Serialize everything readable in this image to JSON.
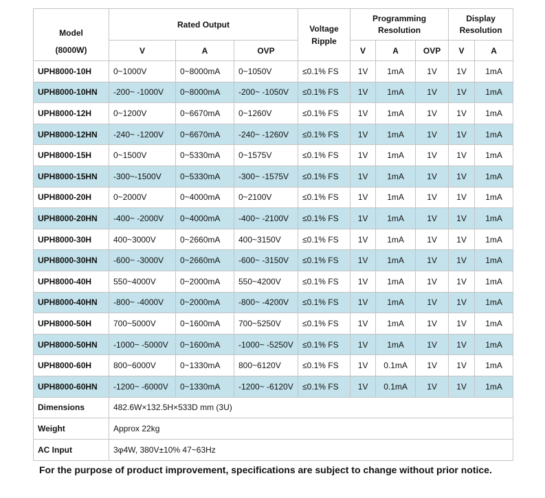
{
  "header": {
    "model": "Model",
    "model_unit": "(8000W)",
    "rated_output": "Rated Output",
    "voltage_ripple": "Voltage Ripple",
    "programming_resolution": "Programming Resolution",
    "display_resolution": "Display Resolution",
    "rated_columns": [
      "V",
      "A",
      "OVP"
    ],
    "programming_columns": [
      "V",
      "A",
      "OVP"
    ],
    "display_columns": [
      "V",
      "A"
    ]
  },
  "table": {
    "rows": [
      [
        "UPH8000-10H",
        "0~1000V",
        "0~8000mA",
        "0~1050V",
        "≤0.1% FS",
        "1V",
        "1mA",
        "1V",
        "1V",
        "1mA"
      ],
      [
        "UPH8000-10HN",
        "-200~ -1000V",
        "0~8000mA",
        "-200~ -1050V",
        "≤0.1% FS",
        "1V",
        "1mA",
        "1V",
        "1V",
        "1mA"
      ],
      [
        "UPH8000-12H",
        "0~1200V",
        "0~6670mA",
        "0~1260V",
        "≤0.1% FS",
        "1V",
        "1mA",
        "1V",
        "1V",
        "1mA"
      ],
      [
        "UPH8000-12HN",
        "-240~ -1200V",
        "0~6670mA",
        "-240~ -1260V",
        "≤0.1% FS",
        "1V",
        "1mA",
        "1V",
        "1V",
        "1mA"
      ],
      [
        "UPH8000-15H",
        "0~1500V",
        "0~5330mA",
        "0~1575V",
        "≤0.1% FS",
        "1V",
        "1mA",
        "1V",
        "1V",
        "1mA"
      ],
      [
        "UPH8000-15HN",
        "-300~-1500V",
        "0~5330mA",
        "-300~ -1575V",
        "≤0.1% FS",
        "1V",
        "1mA",
        "1V",
        "1V",
        "1mA"
      ],
      [
        "UPH8000-20H",
        "0~2000V",
        "0~4000mA",
        "0~2100V",
        "≤0.1% FS",
        "1V",
        "1mA",
        "1V",
        "1V",
        "1mA"
      ],
      [
        "UPH8000-20HN",
        "-400~ -2000V",
        "0~4000mA",
        "-400~ -2100V",
        "≤0.1% FS",
        "1V",
        "1mA",
        "1V",
        "1V",
        "1mA"
      ],
      [
        "UPH8000-30H",
        "400~3000V",
        "0~2660mA",
        "400~3150V",
        "≤0.1% FS",
        "1V",
        "1mA",
        "1V",
        "1V",
        "1mA"
      ],
      [
        "UPH8000-30HN",
        "-600~ -3000V",
        "0~2660mA",
        "-600~ -3150V",
        "≤0.1% FS",
        "1V",
        "1mA",
        "1V",
        "1V",
        "1mA"
      ],
      [
        "UPH8000-40H",
        "550~4000V",
        "0~2000mA",
        "550~4200V",
        "≤0.1% FS",
        "1V",
        "1mA",
        "1V",
        "1V",
        "1mA"
      ],
      [
        "UPH8000-40HN",
        "-800~ -4000V",
        "0~2000mA",
        "-800~ -4200V",
        "≤0.1% FS",
        "1V",
        "1mA",
        "1V",
        "1V",
        "1mA"
      ],
      [
        "UPH8000-50H",
        "700~5000V",
        "0~1600mA",
        "700~5250V",
        "≤0.1% FS",
        "1V",
        "1mA",
        "1V",
        "1V",
        "1mA"
      ],
      [
        "UPH8000-50HN",
        "-1000~ -5000V",
        "0~1600mA",
        "-1000~ -5250V",
        "≤0.1% FS",
        "1V",
        "1mA",
        "1V",
        "1V",
        "1mA"
      ],
      [
        "UPH8000-60H",
        "800~6000V",
        "0~1330mA",
        "800~6120V",
        "≤0.1% FS",
        "1V",
        "0.1mA",
        "1V",
        "1V",
        "1mA"
      ],
      [
        "UPH8000-60HN",
        "-1200~ -6000V",
        "0~1330mA",
        "-1200~ -6120V",
        "≤0.1% FS",
        "1V",
        "0.1mA",
        "1V",
        "1V",
        "1mA"
      ]
    ],
    "extra_rows": [
      [
        "Dimensions",
        "482.6W×132.5H×533D mm (3U)"
      ],
      [
        "Weight",
        "Approx 22kg"
      ],
      [
        "AC Input",
        "3φ4W, 380V±10% 47~63Hz"
      ]
    ]
  },
  "note": "For the purpose of product improvement, specifications are subject to change without prior notice."
}
